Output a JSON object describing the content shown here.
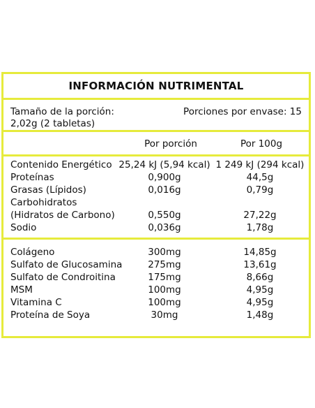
{
  "title": "INFORMACIÓN NUTRIMENTAL",
  "serving": {
    "size_label": "Tamaño de la porción:",
    "size_value": "2,02g (2 tabletas)",
    "servings": "Porciones por envase: 15"
  },
  "headers": {
    "per_serving": "Por porción",
    "per_100g": "Por 100g"
  },
  "nutrients": [
    {
      "name": "Contenido Energético",
      "per_serving": "25,24 kJ (5,94 kcal)",
      "per_100g": "1 249 kJ (294 kcal)"
    },
    {
      "name": "Proteínas",
      "per_serving": "0,900g",
      "per_100g": "44,5g"
    },
    {
      "name": "Grasas (Lípidos)",
      "per_serving": "0,016g",
      "per_100g": "0,79g"
    },
    {
      "name": "Carbohidratos",
      "per_serving": "",
      "per_100g": ""
    },
    {
      "name": "(Hidratos de Carbono)",
      "per_serving": "0,550g",
      "per_100g": "27,22g"
    },
    {
      "name": "Sodio",
      "per_serving": "0,036g",
      "per_100g": "1,78g"
    }
  ],
  "ingredients": [
    {
      "name": "Colágeno",
      "per_serving": "300mg",
      "per_100g": "14,85g"
    },
    {
      "name": "Sulfato de Glucosamina",
      "per_serving": "275mg",
      "per_100g": "13,61g"
    },
    {
      "name": "Sulfato de Condroitina",
      "per_serving": "175mg",
      "per_100g": "8,66g"
    },
    {
      "name": "MSM",
      "per_serving": "100mg",
      "per_100g": "4,95g"
    },
    {
      "name": "Vitamina C",
      "per_serving": "100mg",
      "per_100g": "4,95g"
    },
    {
      "name": "Proteína de Soya",
      "per_serving": "30mg",
      "per_100g": "1,48g"
    }
  ],
  "colors": {
    "border": "#e6eb3c",
    "text": "#111111"
  }
}
